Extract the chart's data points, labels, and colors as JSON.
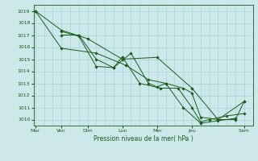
{
  "title": "Pression niveau de la mer( hPa )",
  "xlabel_days": [
    "Mar",
    "Ven",
    "Dim",
    "Lun",
    "Mer",
    "Jeu",
    "Sam"
  ],
  "x_day_positions": [
    0,
    1.5,
    3.0,
    5.0,
    7.0,
    9.0,
    12.0
  ],
  "ylim": [
    1009.5,
    1019.5
  ],
  "yticks": [
    1010,
    1011,
    1012,
    1013,
    1014,
    1015,
    1016,
    1017,
    1018,
    1019
  ],
  "xlim": [
    -0.1,
    12.5
  ],
  "bg_color": "#cce8ea",
  "grid_color": "#9ecece",
  "line_color": "#1a5c1a",
  "lines": [
    {
      "x": [
        0.0,
        1.5,
        3.0,
        5.0,
        7.0,
        9.0,
        10.5,
        12.0
      ],
      "y": [
        1019.0,
        1017.4,
        1016.7,
        1015.0,
        1015.15,
        1012.6,
        1010.0,
        1011.5
      ]
    },
    {
      "x": [
        0.0,
        1.5,
        3.5,
        5.2,
        6.5,
        7.5,
        8.5,
        9.5,
        10.5,
        11.5
      ],
      "y": [
        1019.0,
        1015.9,
        1015.5,
        1014.5,
        1013.3,
        1013.0,
        1011.0,
        1009.7,
        1009.9,
        1010.1
      ]
    },
    {
      "x": [
        1.5,
        2.5,
        3.5,
        4.5,
        5.5,
        6.5,
        7.0,
        7.5,
        8.5,
        9.0,
        9.5,
        10.5,
        11.5,
        12.0
      ],
      "y": [
        1017.3,
        1016.9,
        1014.4,
        1014.3,
        1015.5,
        1013.0,
        1012.7,
        1013.0,
        1012.6,
        1012.2,
        1010.2,
        1010.0,
        1010.0,
        1011.5
      ]
    },
    {
      "x": [
        1.5,
        2.5,
        3.5,
        4.5,
        5.0,
        6.0,
        7.2,
        8.2,
        9.0,
        9.5,
        10.0,
        11.0,
        12.0
      ],
      "y": [
        1017.0,
        1017.0,
        1015.0,
        1014.3,
        1015.2,
        1013.0,
        1012.6,
        1012.6,
        1011.0,
        1009.8,
        1010.0,
        1010.3,
        1010.5
      ]
    }
  ]
}
